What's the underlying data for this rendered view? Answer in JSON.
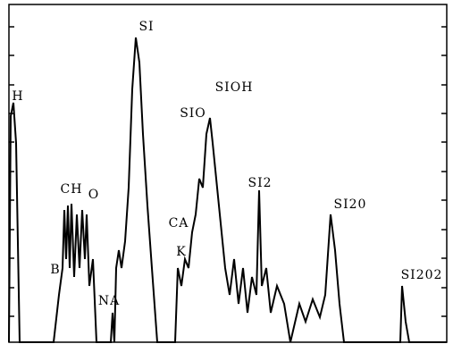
{
  "chart_data": {
    "type": "line",
    "color": "#000000",
    "xlim": [
      0,
      490
    ],
    "ylim": [
      0,
      378
    ],
    "yticks": [
      29,
      61,
      94,
      126,
      159,
      191,
      224,
      256,
      288,
      321,
      353
    ],
    "x": [
      0,
      2,
      5,
      8,
      12,
      50,
      56,
      60,
      62,
      64,
      66,
      68,
      70,
      73,
      76,
      79,
      82,
      85,
      87,
      90,
      94,
      98,
      114,
      116,
      118,
      120,
      123,
      126,
      130,
      134,
      138,
      142,
      146,
      150,
      155,
      160,
      166,
      186,
      189,
      193,
      197,
      201,
      205,
      209,
      213,
      217,
      221,
      225,
      228,
      232,
      237,
      242,
      247,
      252,
      257,
      262,
      267,
      272,
      277,
      280,
      283,
      288,
      293,
      300,
      308,
      315,
      325,
      332,
      340,
      348,
      354,
      360,
      365,
      370,
      375,
      438,
      440,
      444,
      448,
      490
    ],
    "values": [
      0,
      253,
      268,
      223,
      0,
      0,
      53,
      83,
      148,
      93,
      153,
      83,
      155,
      73,
      143,
      83,
      148,
      93,
      143,
      63,
      93,
      0,
      0,
      33,
      0,
      83,
      103,
      83,
      113,
      173,
      283,
      341,
      313,
      233,
      153,
      83,
      0,
      0,
      83,
      63,
      93,
      83,
      123,
      143,
      183,
      173,
      233,
      251,
      223,
      183,
      133,
      83,
      53,
      93,
      43,
      83,
      33,
      73,
      53,
      170,
      63,
      83,
      33,
      63,
      43,
      0,
      43,
      23,
      48,
      28,
      53,
      143,
      103,
      43,
      0,
      0,
      63,
      23,
      0,
      0
    ],
    "annotations": [
      {
        "text": "H",
        "x": 10,
        "y": 275
      },
      {
        "text": "CH",
        "x": 70,
        "y": 171
      },
      {
        "text": "O",
        "x": 95,
        "y": 165
      },
      {
        "text": "B",
        "x": 52,
        "y": 81
      },
      {
        "text": "NA",
        "x": 112,
        "y": 46
      },
      {
        "text": "SI",
        "x": 154,
        "y": 353
      },
      {
        "text": "CA",
        "x": 190,
        "y": 133
      },
      {
        "text": "K",
        "x": 193,
        "y": 101
      },
      {
        "text": "SIO",
        "x": 206,
        "y": 256
      },
      {
        "text": "SIOH",
        "x": 252,
        "y": 285
      },
      {
        "text": "SI2",
        "x": 281,
        "y": 178
      },
      {
        "text": "SI20",
        "x": 382,
        "y": 154
      },
      {
        "text": "SI202",
        "x": 462,
        "y": 75
      }
    ]
  }
}
